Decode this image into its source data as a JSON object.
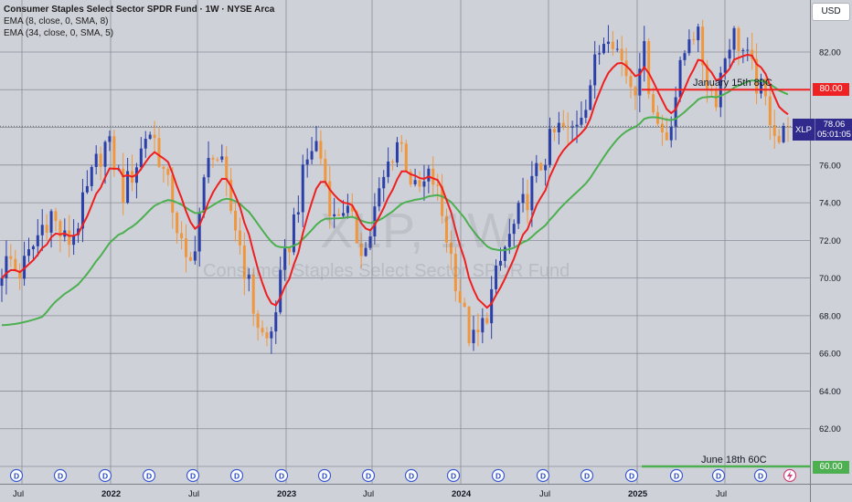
{
  "legend": {
    "title": "Consumer Staples Select Sector SPDR Fund · 1W · NYSE Arca",
    "ema1": "EMA (8, close, 0, SMA, 8)",
    "ema2": "EMA (34, close, 0, SMA, 5)"
  },
  "currency": "USD",
  "watermark": {
    "symbol": "XLP, 1W",
    "name": "Consumer Staples Select Sector SPDR Fund"
  },
  "annotations": {
    "upper_label": "January 15th 80C",
    "upper_value": "80.00",
    "lower_label": "June 18th 60C",
    "lower_value": "60.00"
  },
  "current_price": {
    "symbol": "XLP",
    "price": "78.06",
    "countdown": "05:01:05"
  },
  "colors": {
    "up": "#2b3fa8",
    "down": "#f0963c",
    "ema_fast": "#ef1f1f",
    "ema_slow": "#4caf50",
    "annotation_red": "#ee2222",
    "annotation_green": "#4caf50",
    "price_tag": "#2f2a8c"
  },
  "event_markers": {
    "dividend_letter": "D",
    "flash_icon": "lightning-icon"
  },
  "chart_data": {
    "type": "candlestick",
    "interval": "1W",
    "ylim": [
      60.0,
      85.5
    ],
    "y_ticks": [
      "60.00",
      "62.00",
      "64.00",
      "66.00",
      "68.00",
      "70.00",
      "72.00",
      "74.00",
      "76.00",
      "78.00",
      "80.00",
      "82.00"
    ],
    "x_ticks": [
      "Jul",
      "2022",
      "Jul",
      "2023",
      "Jul",
      "2024",
      "Jul",
      "2025",
      "Jul"
    ],
    "horizontal_levels": [
      {
        "label": "January 15th 80C",
        "value": 80.0
      },
      {
        "label": "June 18th 60C",
        "value": 60.0
      }
    ],
    "ohlc_close_path": [
      70.5,
      71.0,
      70.2,
      70.8,
      71.8,
      72.8,
      73.5,
      72.5,
      71.8,
      72.5,
      73.8,
      75.2,
      76.5,
      77.2,
      76.0,
      74.5,
      75.5,
      76.5,
      78.0,
      77.2,
      75.5,
      74.0,
      72.0,
      70.0,
      72.5,
      75.0,
      77.0,
      76.0,
      74.0,
      72.5,
      70.5,
      68.5,
      67.0,
      66.5,
      69.0,
      71.0,
      73.0,
      75.0,
      76.8,
      77.2,
      75.0,
      73.0,
      74.0,
      73.0,
      72.0,
      71.5,
      73.5,
      75.0,
      76.5,
      77.5,
      76.0,
      74.5,
      74.8,
      75.5,
      74.0,
      72.0,
      70.0,
      68.0,
      66.5,
      67.0,
      68.5,
      70.0,
      71.5,
      72.5,
      73.5,
      74.5,
      75.5,
      76.5,
      77.5,
      78.0,
      77.5,
      78.5,
      79.5,
      81.0,
      82.5,
      83.5,
      82.0,
      81.0,
      80.0,
      82.5,
      80.0,
      78.0,
      77.5,
      79.5,
      81.5,
      83.5,
      82.5,
      80.5,
      79.5,
      81.5,
      83.0,
      82.5,
      81.5,
      80.5,
      79.5,
      78.5,
      77.2,
      78.06
    ],
    "ema_fast_last": 78.1,
    "ema_slow_last": 79.6,
    "last_close": 78.06
  }
}
